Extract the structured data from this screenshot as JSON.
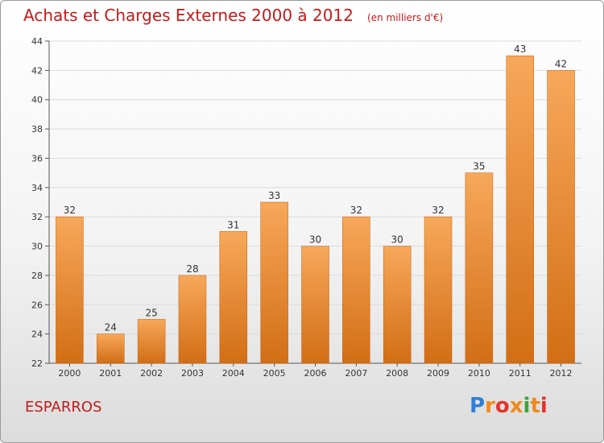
{
  "title": "Achats et Charges Externes 2000 à 2012",
  "subtitle": "(en milliers d'€)",
  "commune": "ESPARROS",
  "logo": {
    "text": "Proxiti",
    "colors": [
      "#2f7fd3",
      "#f08a1c",
      "#e5332a",
      "#f08a1c",
      "#3aa535",
      "#f08a1c",
      "#e5332a"
    ]
  },
  "colors": {
    "title": "#c41a1a",
    "bar_light": "#f7a85a",
    "bar_dark": "#d26e15"
  },
  "chart_data": {
    "type": "bar",
    "title": "Achats et Charges Externes 2000 à 2012",
    "subtitle": "(en milliers d'€)",
    "categories": [
      "2000",
      "2001",
      "2002",
      "2003",
      "2004",
      "2005",
      "2006",
      "2007",
      "2008",
      "2009",
      "2010",
      "2011",
      "2012"
    ],
    "values": [
      32,
      24,
      25,
      28,
      31,
      33,
      30,
      32,
      30,
      32,
      35,
      43,
      42
    ],
    "ylim": [
      22,
      44
    ],
    "yticks": [
      22,
      24,
      26,
      28,
      30,
      32,
      34,
      36,
      38,
      40,
      42,
      44
    ],
    "grid": true,
    "xlabel": "",
    "ylabel": ""
  }
}
